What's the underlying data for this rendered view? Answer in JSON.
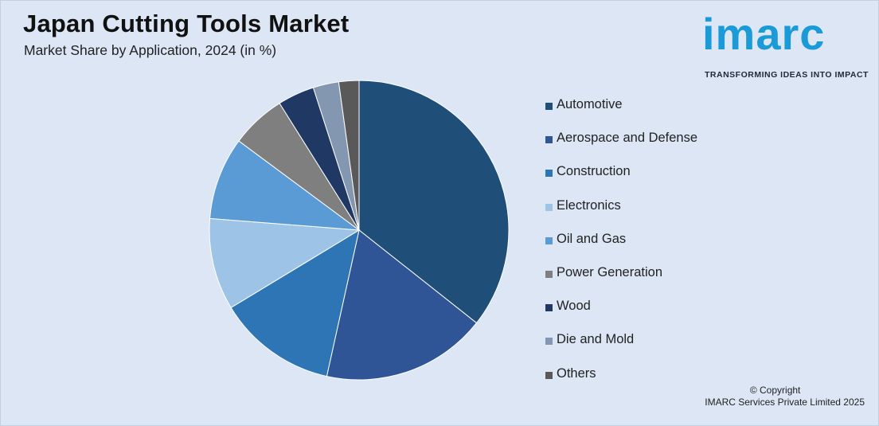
{
  "header": {
    "title": "Japan Cutting Tools Market",
    "subtitle": "Market Share by Application, 2024 (in %)"
  },
  "logo": {
    "word": "imarc",
    "tagline": "TRANSFORMING IDEAS INTO IMPACT",
    "color": "#1a9ad6"
  },
  "footer": {
    "copyright": "© Copyright",
    "company": "IMARC Services Private Limited 2025"
  },
  "chart_data": {
    "type": "pie",
    "title": "Japan Cutting Tools Market",
    "subtitle": "Market Share by Application, 2024 (in %)",
    "legend_position": "right",
    "slices": [
      {
        "label": "Automotive",
        "value": 36,
        "color": "#1f4e79"
      },
      {
        "label": "Aerospace and Defense",
        "value": 18,
        "color": "#2f5597"
      },
      {
        "label": "Construction",
        "value": 13,
        "color": "#2e75b6"
      },
      {
        "label": "Electronics",
        "value": 10,
        "color": "#9dc3e6"
      },
      {
        "label": "Oil and Gas",
        "value": 9,
        "color": "#5b9bd5"
      },
      {
        "label": "Power Generation",
        "value": 6,
        "color": "#7f7f7f"
      },
      {
        "label": "Wood",
        "value": 4,
        "color": "#203864"
      },
      {
        "label": "Die and Mold",
        "value": 2.8,
        "color": "#8497b0"
      },
      {
        "label": "Others",
        "value": 2.2,
        "color": "#595959"
      }
    ]
  }
}
